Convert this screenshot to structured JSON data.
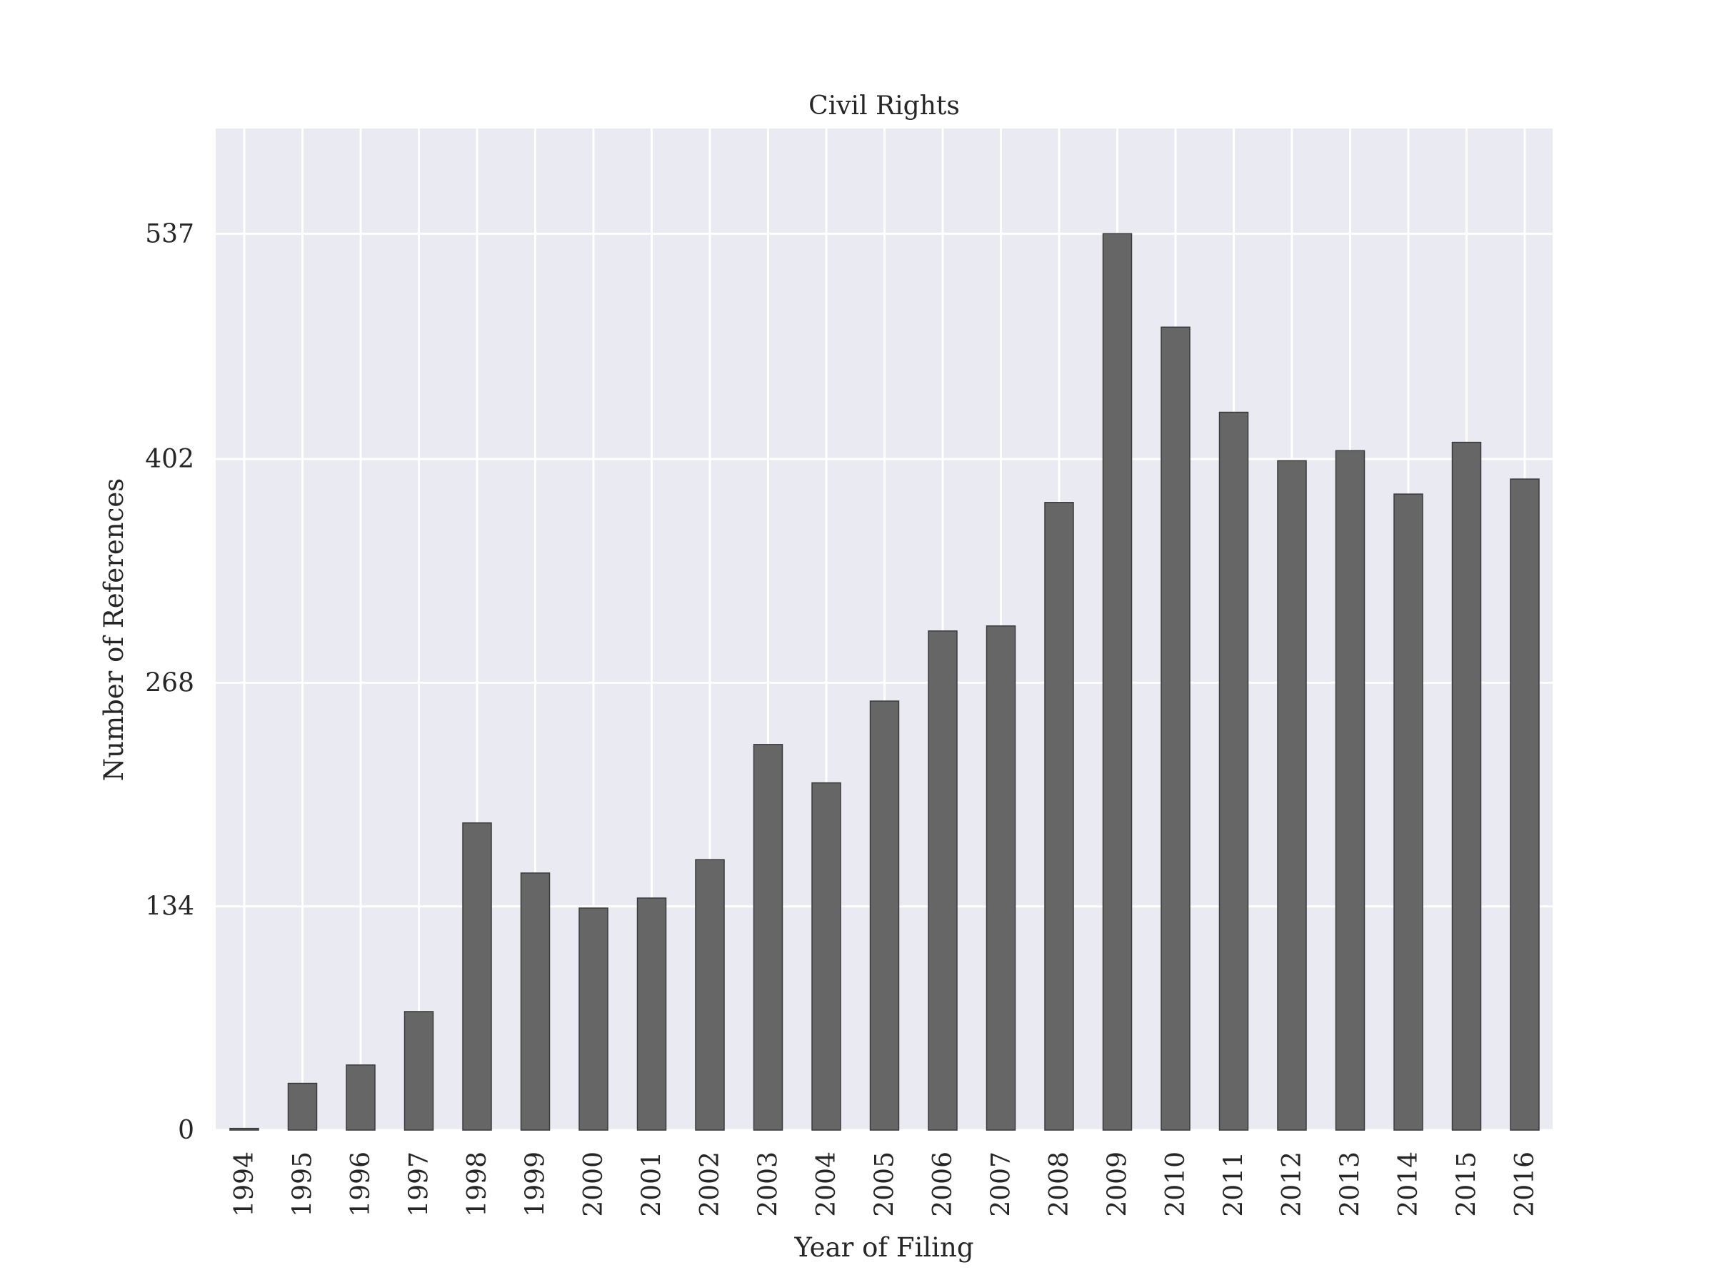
{
  "chart_data": {
    "type": "bar",
    "title": "Civil Rights",
    "xlabel": "Year of Filing",
    "ylabel": "Number of References",
    "categories": [
      "1994",
      "1995",
      "1996",
      "1997",
      "1998",
      "1999",
      "2000",
      "2001",
      "2002",
      "2003",
      "2004",
      "2005",
      "2006",
      "2007",
      "2008",
      "2009",
      "2010",
      "2011",
      "2012",
      "2013",
      "2014",
      "2015",
      "2016"
    ],
    "values": [
      1,
      28,
      39,
      71,
      184,
      154,
      133,
      139,
      162,
      231,
      208,
      257,
      299,
      302,
      376,
      537,
      481,
      430,
      401,
      407,
      381,
      412,
      390
    ],
    "yticks": [
      0,
      134,
      268,
      402,
      537
    ],
    "ytick_labels": [
      "0",
      "134",
      "268",
      "402",
      "537"
    ],
    "ylim": [
      0,
      600
    ],
    "grid": true,
    "colors": {
      "bar_fill": "#666666",
      "bar_edge": "#3a3a3a",
      "plot_background": "#eaeaf2",
      "grid": "#ffffff"
    }
  }
}
